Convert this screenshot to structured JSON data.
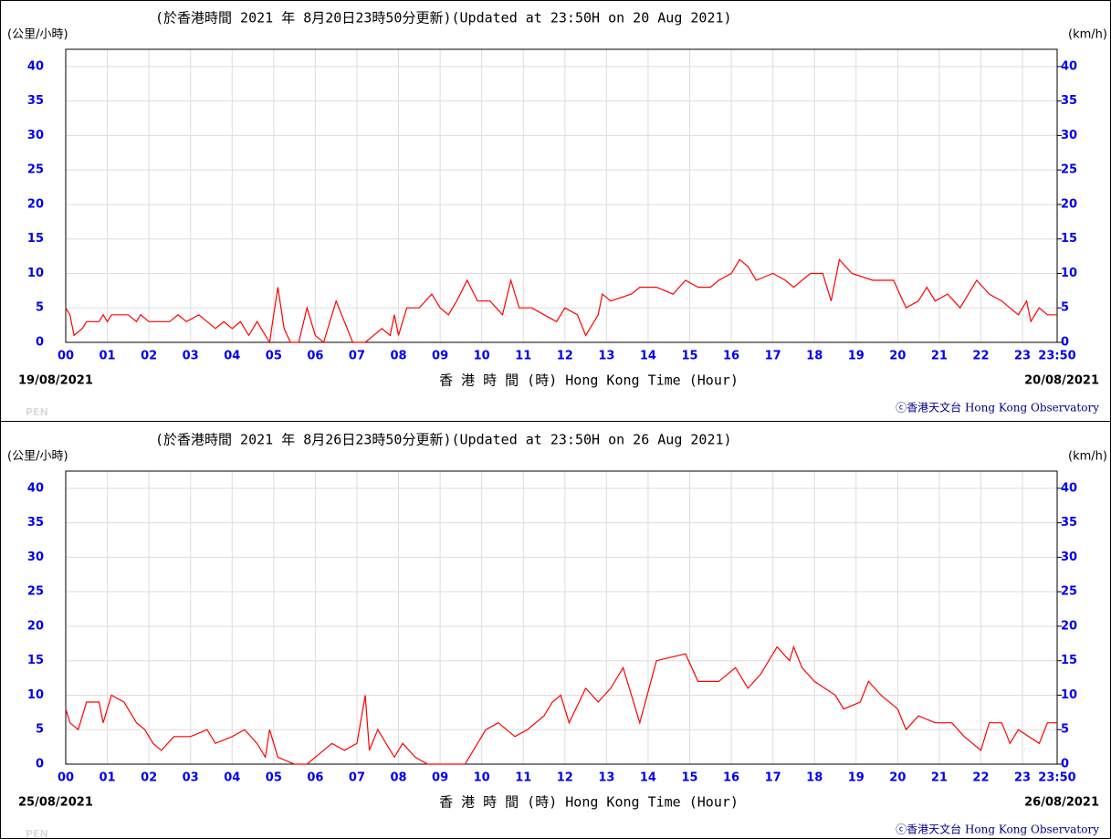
{
  "chart_data": [
    {
      "type": "line",
      "title": "(於香港時間 2021 年 8月20日23時50分更新)(Updated at 23:50H on 20 Aug 2021)",
      "y_label_left": "(公里/小時)",
      "y_label_right": "(km/h)",
      "x_label": "香 港 時 間 (時)  Hong Kong Time (Hour)",
      "start_date": "19/08/2021",
      "end_date": "20/08/2021",
      "credit": "ⓒ香港天文台 Hong Kong Observatory",
      "watermark": "PEN",
      "xlim": [
        0,
        23.833
      ],
      "ylim": [
        0,
        42.5
      ],
      "grid": true,
      "xticks": [
        {
          "value": 0,
          "label": "00"
        },
        {
          "value": 1,
          "label": "01"
        },
        {
          "value": 2,
          "label": "02"
        },
        {
          "value": 3,
          "label": "03"
        },
        {
          "value": 4,
          "label": "04"
        },
        {
          "value": 5,
          "label": "05"
        },
        {
          "value": 6,
          "label": "06"
        },
        {
          "value": 7,
          "label": "07"
        },
        {
          "value": 8,
          "label": "08"
        },
        {
          "value": 9,
          "label": "09"
        },
        10,
        11,
        12,
        13,
        14,
        15,
        16,
        17,
        18,
        19,
        20,
        21,
        22,
        23,
        {
          "value": 23.833,
          "label": "23:50"
        }
      ],
      "yticks": [
        0,
        5,
        10,
        15,
        20,
        25,
        30,
        35,
        40
      ],
      "x": [
        0,
        0.1,
        0.2,
        0.4,
        0.5,
        0.8,
        0.9,
        1.0,
        1.1,
        1.5,
        1.7,
        1.8,
        2.0,
        2.5,
        2.7,
        2.9,
        3.2,
        3.4,
        3.6,
        3.8,
        4.0,
        4.2,
        4.4,
        4.6,
        4.8,
        4.9,
        5.0,
        5.1,
        5.25,
        5.4,
        5.6,
        5.8,
        6.0,
        6.2,
        6.5,
        6.7,
        6.9,
        7.2,
        7.4,
        7.6,
        7.8,
        7.9,
        8.0,
        8.2,
        8.5,
        8.8,
        9.0,
        9.2,
        9.4,
        9.65,
        9.9,
        10.2,
        10.5,
        10.7,
        10.9,
        11.2,
        11.5,
        11.8,
        12.0,
        12.3,
        12.5,
        12.8,
        12.9,
        13.1,
        13.6,
        13.8,
        14.2,
        14.6,
        14.9,
        15.2,
        15.5,
        15.7,
        16.0,
        16.2,
        16.4,
        16.6,
        17.0,
        17.3,
        17.5,
        17.9,
        18.2,
        18.4,
        18.6,
        18.9,
        19.4,
        19.9,
        20.2,
        20.5,
        20.7,
        20.9,
        21.2,
        21.5,
        21.9,
        22.2,
        22.5,
        22.9,
        23.1,
        23.2,
        23.4,
        23.6,
        23.833
      ],
      "series": [
        {
          "name": "wind",
          "color": "#ff0000",
          "values": [
            5,
            4,
            1,
            2,
            3,
            3,
            4,
            3,
            4,
            4,
            3,
            4,
            3,
            3,
            4,
            3,
            4,
            3,
            2,
            3,
            2,
            3,
            1,
            3,
            1,
            0,
            4,
            8,
            2,
            0,
            0,
            5,
            1,
            0,
            6,
            3,
            0,
            0,
            1,
            2,
            1,
            4,
            1,
            5,
            5,
            7,
            5,
            4,
            6,
            9,
            6,
            6,
            4,
            9,
            5,
            5,
            4,
            3,
            5,
            4,
            1,
            4,
            7,
            6,
            7,
            8,
            8,
            7,
            9,
            8,
            8,
            9,
            10,
            12,
            11,
            9,
            10,
            9,
            8,
            10,
            10,
            6,
            12,
            10,
            9,
            9,
            5,
            6,
            8,
            6,
            7,
            5,
            9,
            7,
            6,
            4,
            6,
            3,
            5,
            4,
            4
          ]
        }
      ]
    },
    {
      "type": "line",
      "title": "(於香港時間 2021 年 8月26日23時50分更新)(Updated at 23:50H on 26 Aug 2021)",
      "y_label_left": "(公里/小時)",
      "y_label_right": "(km/h)",
      "x_label": "香 港 時 間 (時)  Hong Kong Time (Hour)",
      "start_date": "25/08/2021",
      "end_date": "26/08/2021",
      "credit": "ⓒ香港天文台 Hong Kong Observatory",
      "watermark": "PEN",
      "xlim": [
        0,
        23.833
      ],
      "ylim": [
        0,
        42.5
      ],
      "grid": true,
      "xticks": [
        {
          "value": 0,
          "label": "00"
        },
        {
          "value": 1,
          "label": "01"
        },
        {
          "value": 2,
          "label": "02"
        },
        {
          "value": 3,
          "label": "03"
        },
        {
          "value": 4,
          "label": "04"
        },
        {
          "value": 5,
          "label": "05"
        },
        {
          "value": 6,
          "label": "06"
        },
        {
          "value": 7,
          "label": "07"
        },
        {
          "value": 8,
          "label": "08"
        },
        {
          "value": 9,
          "label": "09"
        },
        10,
        11,
        12,
        13,
        14,
        15,
        16,
        17,
        18,
        19,
        20,
        21,
        22,
        23,
        {
          "value": 23.833,
          "label": "23:50"
        }
      ],
      "yticks": [
        0,
        5,
        10,
        15,
        20,
        25,
        30,
        35,
        40
      ],
      "x": [
        0,
        0.1,
        0.3,
        0.5,
        0.8,
        0.9,
        1.1,
        1.4,
        1.7,
        1.9,
        2.1,
        2.3,
        2.6,
        3.0,
        3.4,
        3.6,
        4.0,
        4.3,
        4.6,
        4.8,
        4.9,
        5.1,
        5.5,
        5.8,
        6.0,
        6.4,
        6.7,
        7.0,
        7.2,
        7.3,
        7.5,
        7.9,
        8.1,
        8.4,
        8.7,
        9.4,
        9.6,
        9.9,
        10.1,
        10.4,
        10.8,
        11.1,
        11.5,
        11.7,
        11.9,
        12.1,
        12.5,
        12.8,
        13.1,
        13.4,
        13.8,
        14.2,
        14.9,
        15.2,
        15.7,
        16.1,
        16.4,
        16.7,
        17.1,
        17.4,
        17.5,
        17.7,
        18.0,
        18.5,
        18.7,
        19.1,
        19.3,
        19.6,
        20.0,
        20.2,
        20.5,
        20.9,
        21.3,
        21.6,
        22.0,
        22.2,
        22.5,
        22.7,
        22.9,
        23.4,
        23.6,
        23.833
      ],
      "series": [
        {
          "name": "wind",
          "color": "#ff0000",
          "values": [
            8,
            6,
            5,
            9,
            9,
            6,
            10,
            9,
            6,
            5,
            3,
            2,
            4,
            4,
            5,
            3,
            4,
            5,
            3,
            1,
            5,
            1,
            0,
            0,
            1,
            3,
            2,
            3,
            10,
            2,
            5,
            1,
            3,
            1,
            0,
            0,
            0,
            3,
            5,
            6,
            4,
            5,
            7,
            9,
            10,
            6,
            11,
            9,
            11,
            14,
            6,
            15,
            16,
            12,
            12,
            14,
            11,
            13,
            17,
            15,
            17,
            14,
            12,
            10,
            8,
            9,
            12,
            10,
            8,
            5,
            7,
            6,
            6,
            4,
            2,
            6,
            6,
            3,
            5,
            3,
            6,
            6
          ]
        }
      ]
    }
  ]
}
